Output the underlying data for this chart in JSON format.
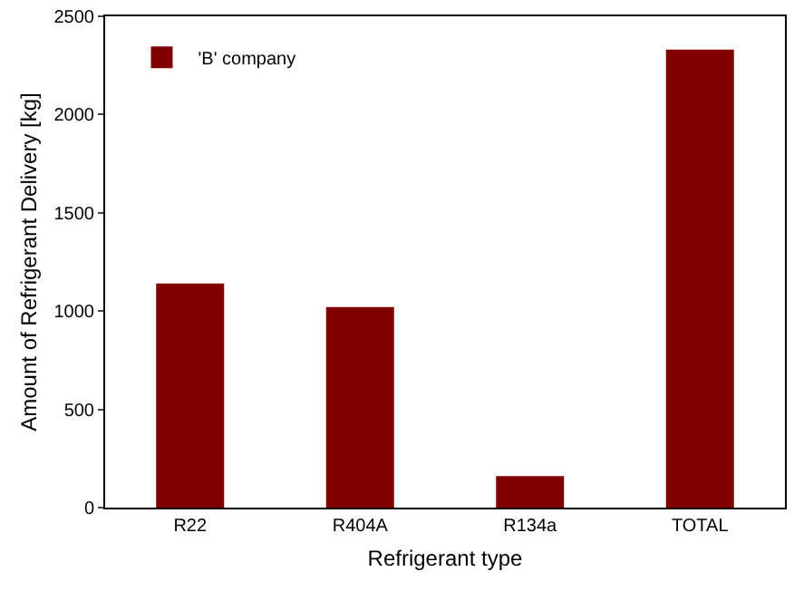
{
  "chart_data": {
    "type": "bar",
    "xlabel": "Refrigerant type",
    "ylabel": "Amount of Refrigerant Delivery [kg]",
    "categories": [
      "R22",
      "R404A",
      "R134a",
      "TOTAL"
    ],
    "series": [
      {
        "name": "'B' company",
        "color": "#800000",
        "values": [
          1140,
          1020,
          160,
          2330
        ]
      }
    ],
    "ylim": [
      0,
      2500
    ],
    "yticks": [
      0,
      500,
      1000,
      1500,
      2000,
      2500
    ],
    "legend": "top left"
  }
}
